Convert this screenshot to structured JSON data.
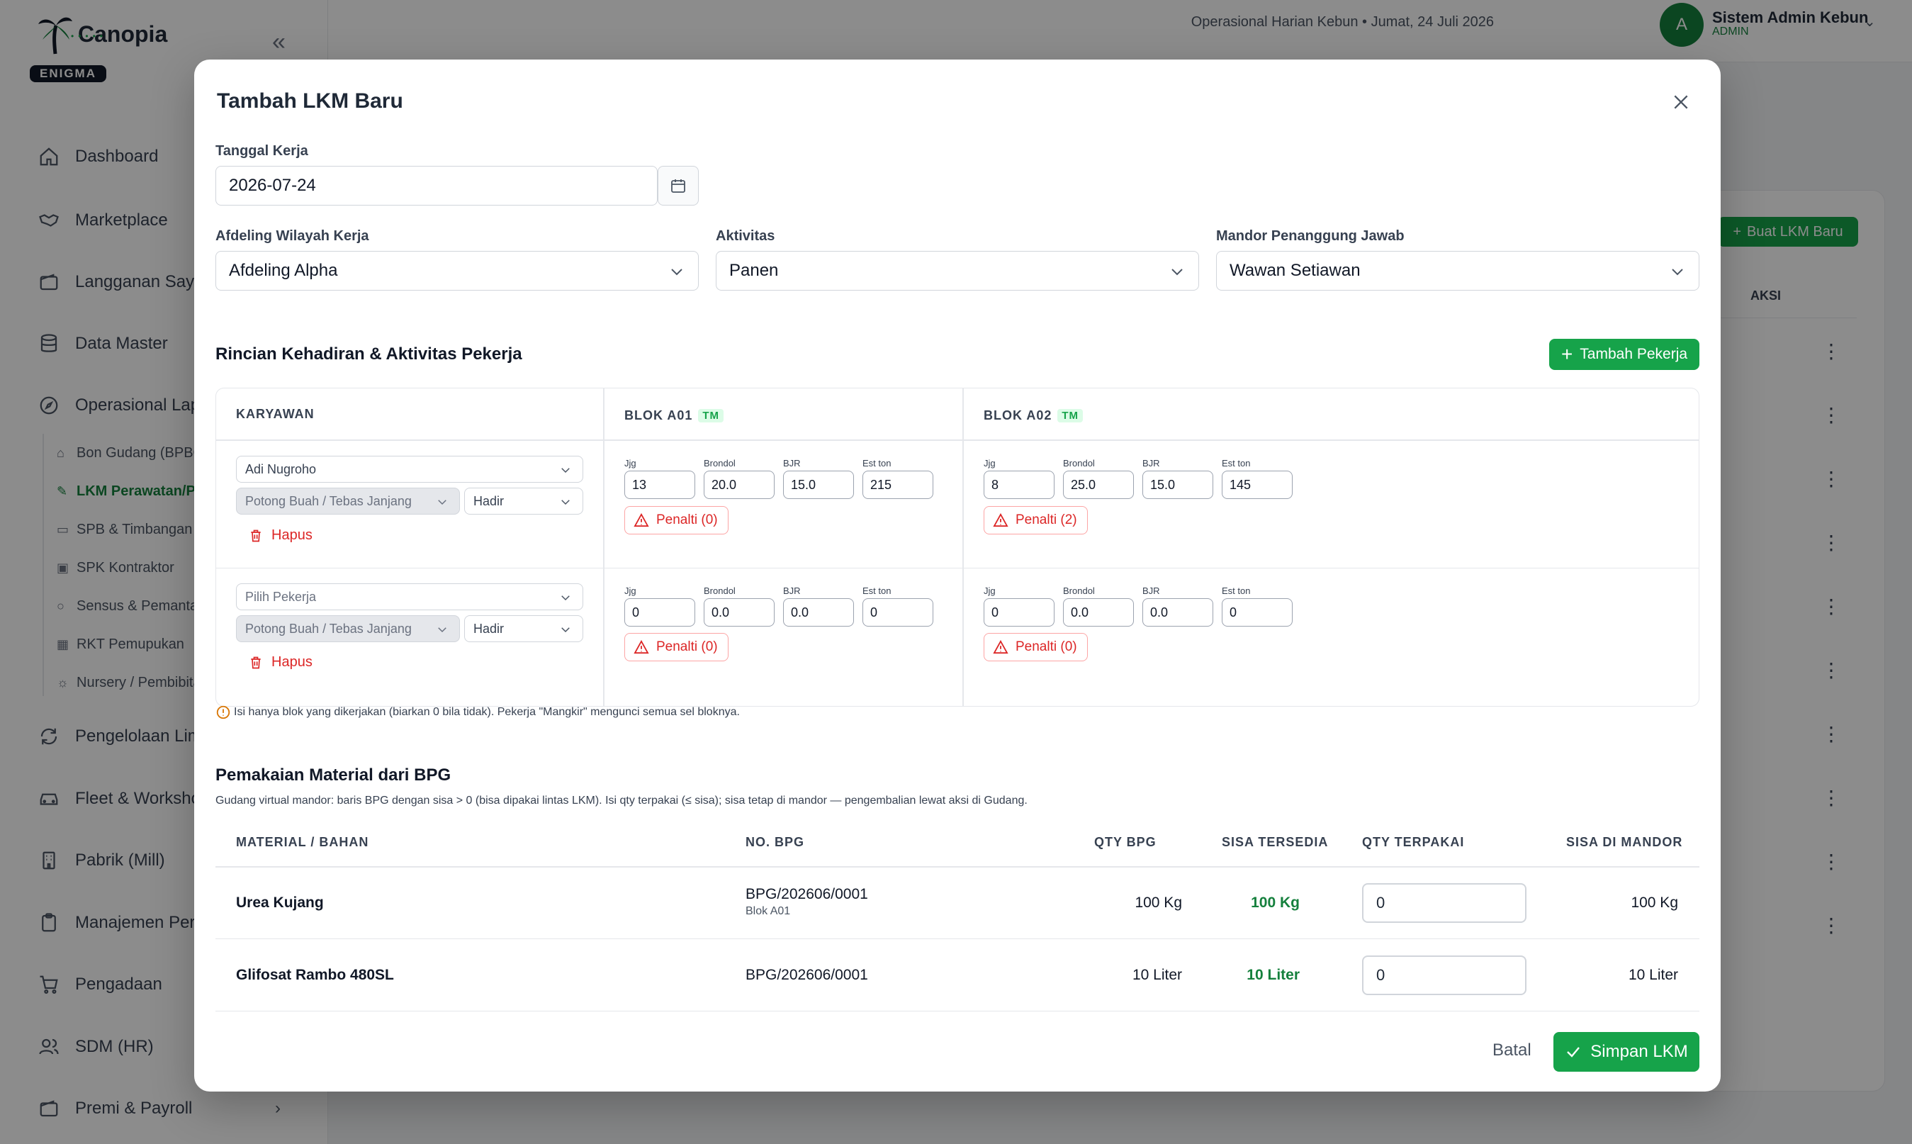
{
  "app": {
    "name": "Canopia",
    "badge": "ENIGMA",
    "topbar_context": "Operasional Harian Kebun",
    "topbar_date": "Jumat, 24 Juli 2026",
    "user_initial": "A",
    "user_name": "Sistem Admin Kebun",
    "user_role": "ADMIN",
    "collapse_icon": "«"
  },
  "sidebar": {
    "items": [
      {
        "label": "Dashboard",
        "icon": "home-icon"
      },
      {
        "label": "Marketplace",
        "icon": "handshake-icon"
      },
      {
        "label": "Langganan Saya",
        "icon": "wallet-icon"
      },
      {
        "label": "Data Master",
        "icon": "database-icon"
      },
      {
        "label": "Operasional Lapangan",
        "icon": "compass-icon"
      },
      {
        "label": "Pengelolaan Limbah",
        "icon": "recycle-icon"
      },
      {
        "label": "Fleet & Workshop",
        "icon": "car-icon"
      },
      {
        "label": "Pabrik (Mill)",
        "icon": "building-icon"
      },
      {
        "label": "Manajemen Persediaan",
        "icon": "clipboard-icon"
      },
      {
        "label": "Pengadaan",
        "icon": "cart-icon"
      },
      {
        "label": "SDM (HR)",
        "icon": "users-icon"
      },
      {
        "label": "Premi & Payroll",
        "icon": "wallet-icon"
      }
    ],
    "sub_items": [
      {
        "label": "Bon Gudang (BPBG)"
      },
      {
        "label": "LKM Perawatan/Panen"
      },
      {
        "label": "SPB & Timbangan"
      },
      {
        "label": "SPK Kontraktor"
      },
      {
        "label": "Sensus & Pemantauan"
      },
      {
        "label": "RKT Pemupukan"
      },
      {
        "label": "Nursery / Pembibitan"
      }
    ]
  },
  "background": {
    "create_button": "Buat LKM Baru",
    "aksi_header": "AKSI"
  },
  "modal": {
    "title": "Tambah LKM Baru",
    "tanggal_label": "Tanggal Kerja",
    "tanggal_value": "2026-07-24",
    "afdeling_label": "Afdeling Wilayah Kerja",
    "afdeling_value": "Afdeling Alpha",
    "aktivitas_label": "Aktivitas",
    "aktivitas_value": "Panen",
    "mandor_label": "Mandor Penanggung Jawab",
    "mandor_value": "Wawan Setiawan",
    "section_workers": "Rincian Kehadiran & Aktivitas Pekerja",
    "add_worker": "Tambah Pekerja",
    "col_karyawan": "KARYAWAN",
    "blocks": [
      {
        "name": "BLOK A01",
        "badge": "TM"
      },
      {
        "name": "BLOK A02",
        "badge": "TM"
      }
    ],
    "field_labels": {
      "jjg": "Jjg",
      "brondol": "Brondol",
      "bjr": "BJR",
      "est": "Est ton"
    },
    "hapus": "Hapus",
    "workers": [
      {
        "name": "Adi Nugroho",
        "activity": "Potong Buah / Tebas Janjang",
        "status": "Hadir",
        "blocks": [
          {
            "jjg": "13",
            "brondol": "20.0",
            "bjr": "15.0",
            "est": "215",
            "penalti": "Penalti (0)"
          },
          {
            "jjg": "8",
            "brondol": "25.0",
            "bjr": "15.0",
            "est": "145",
            "penalti": "Penalti (2)"
          }
        ]
      },
      {
        "name": "Pilih Pekerja",
        "activity": "Potong Buah / Tebas Janjang",
        "status": "Hadir",
        "blocks": [
          {
            "jjg": "0",
            "brondol": "0.0",
            "bjr": "0.0",
            "est": "0",
            "penalti": "Penalti (0)"
          },
          {
            "jjg": "0",
            "brondol": "0.0",
            "bjr": "0.0",
            "est": "0",
            "penalti": "Penalti (0)"
          }
        ]
      }
    ],
    "note": "Isi hanya blok yang dikerjakan (biarkan 0 bila tidak). Pekerja \"Mangkir\" mengunci semua sel bloknya.",
    "material_title": "Pemakaian Material dari BPG",
    "material_subtitle": "Gudang virtual mandor: baris BPG dengan sisa > 0 (bisa dipakai lintas LKM). Isi qty terpakai (≤ sisa); sisa tetap di mandor — pengembalian lewat aksi di Gudang.",
    "material_headers": {
      "material": "MATERIAL / BAHAN",
      "no_bpg": "NO. BPG",
      "qty_bpg": "QTY BPG",
      "sisa": "SISA TERSEDIA",
      "qty_terpakai": "QTY TERPAKAI",
      "sisa_mandor": "SISA DI MANDOR"
    },
    "materials": [
      {
        "name": "Urea Kujang",
        "no_bpg": "BPG/202606/0001",
        "blok": "Blok A01",
        "qty_bpg": "100 Kg",
        "sisa": "100 Kg",
        "qty_terpakai": "0",
        "sisa_mandor": "100 Kg"
      },
      {
        "name": "Glifosat Rambo 480SL",
        "no_bpg": "BPG/202606/0001",
        "blok": "",
        "qty_bpg": "10 Liter",
        "sisa": "10 Liter",
        "qty_terpakai": "0",
        "sisa_mandor": "10 Liter"
      }
    ],
    "cancel": "Batal",
    "save": "Simpan LKM"
  }
}
